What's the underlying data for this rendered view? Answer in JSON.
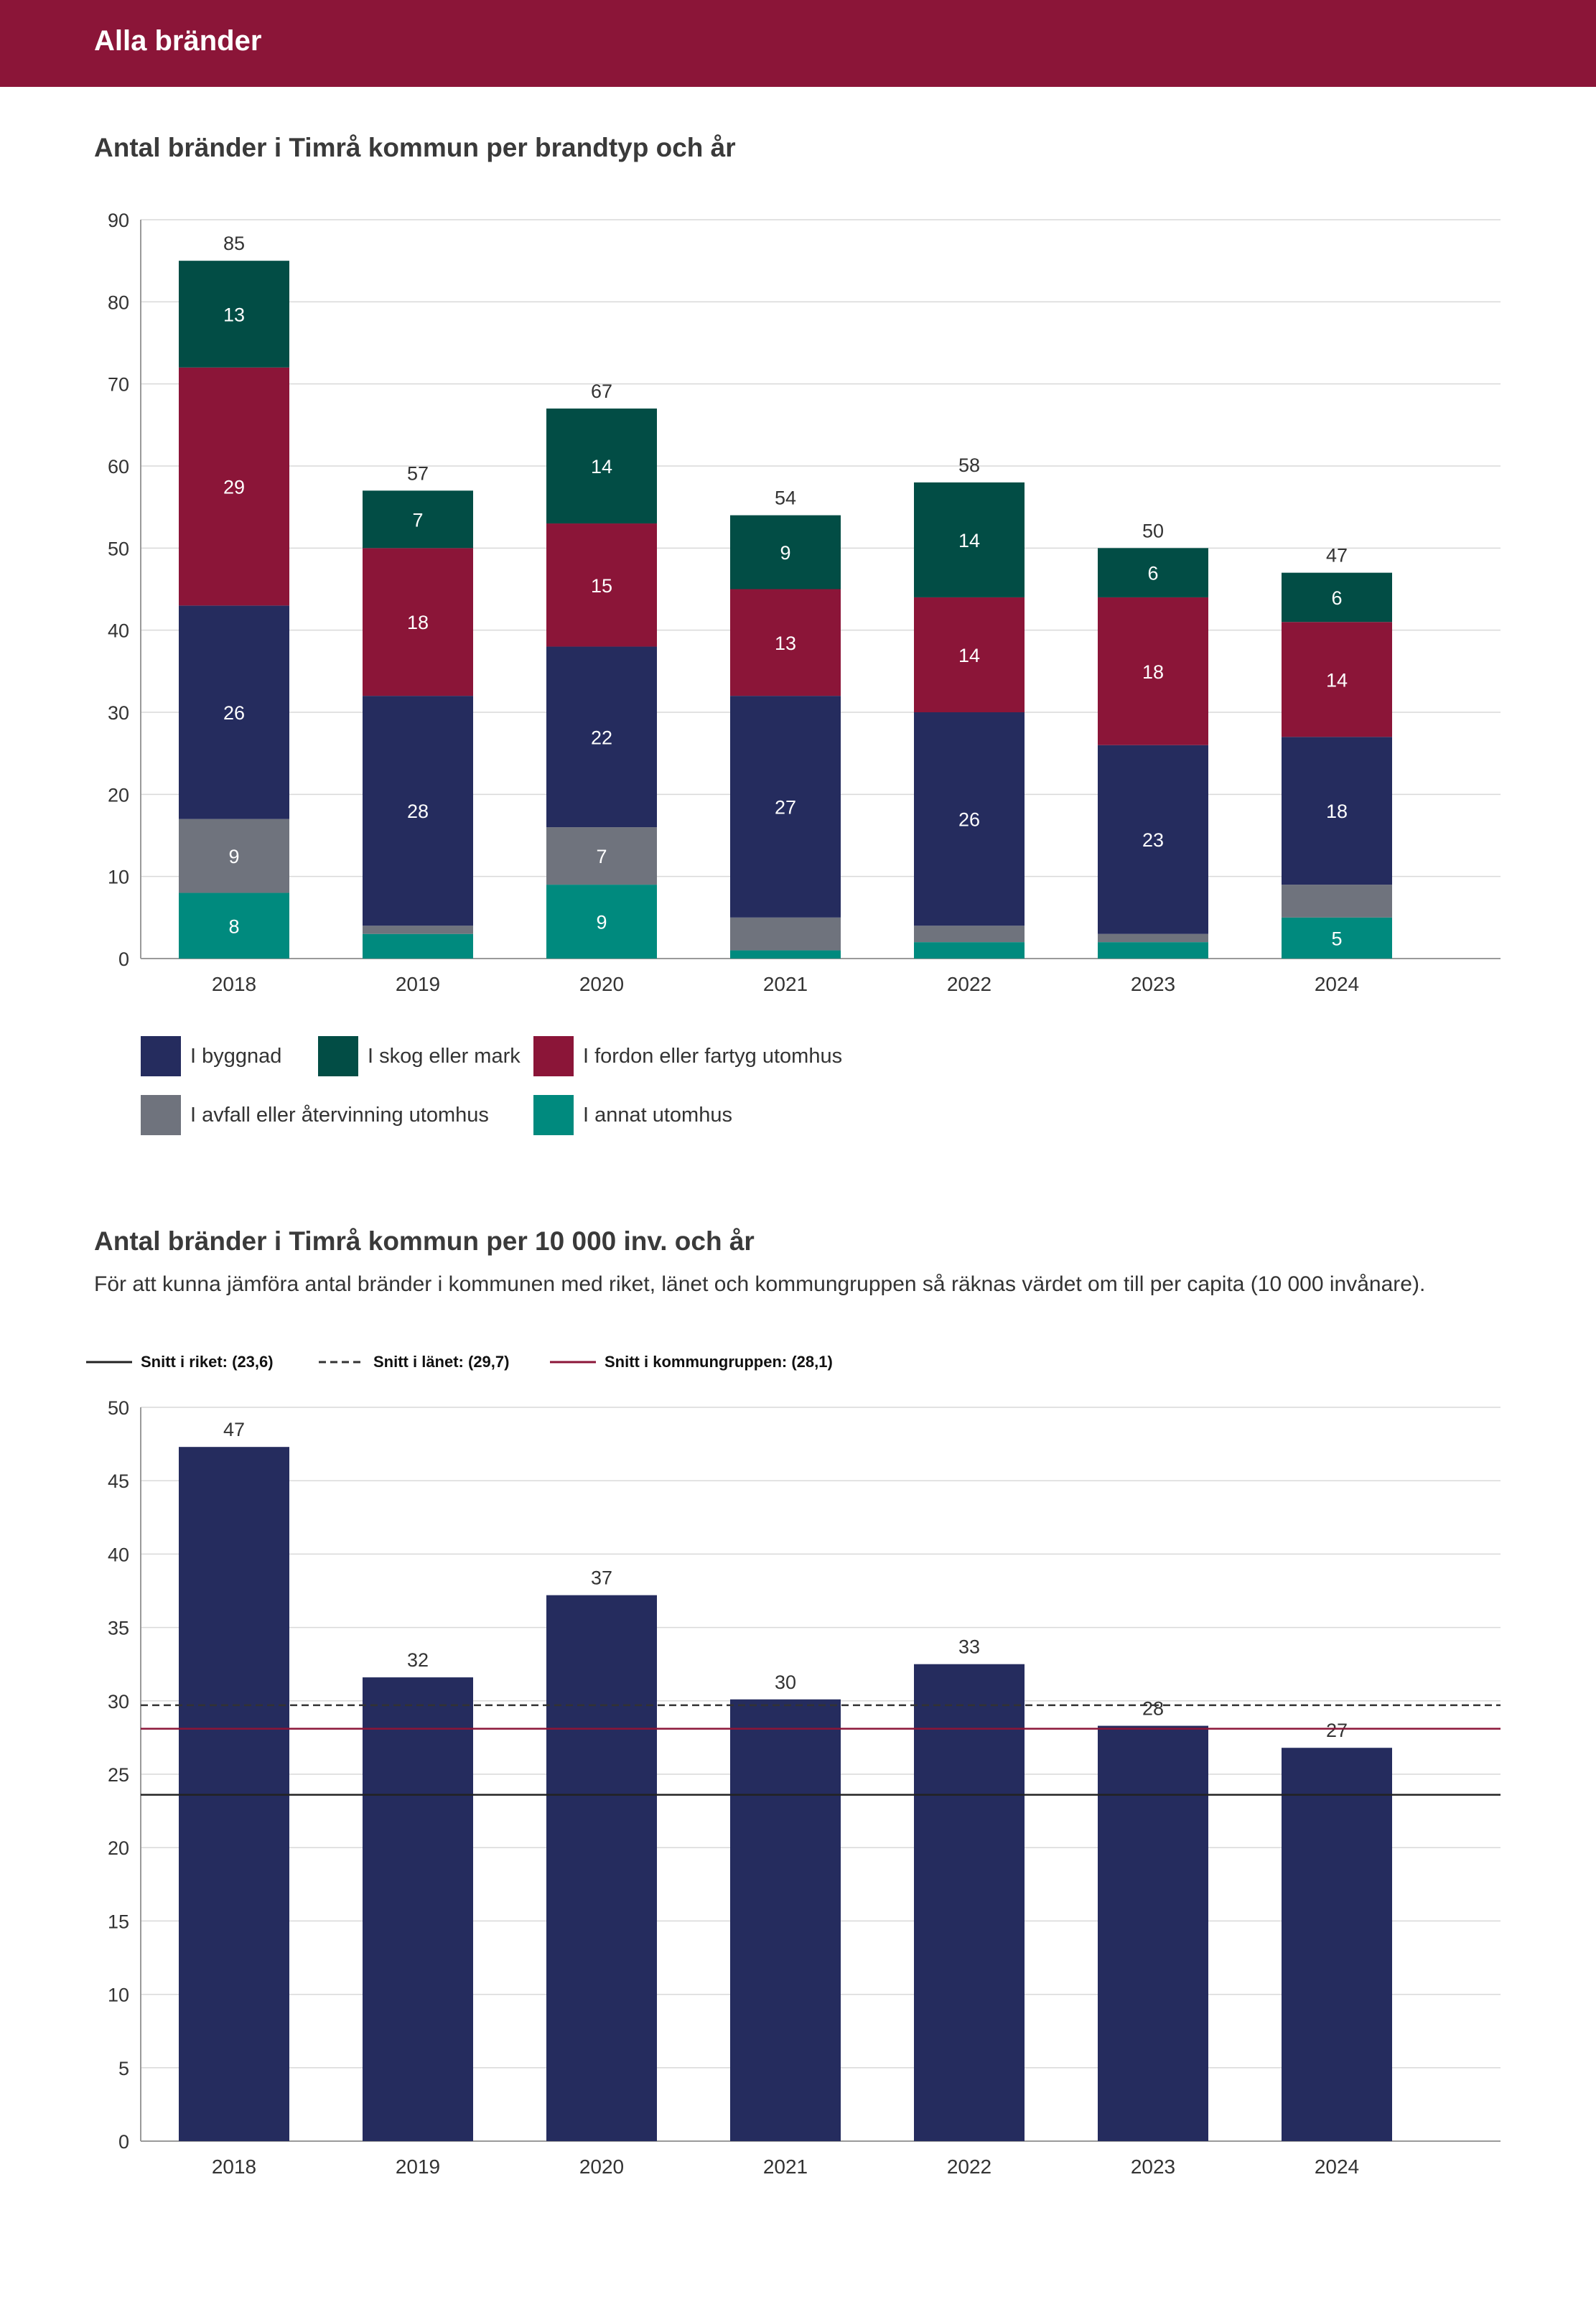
{
  "header": {
    "title": "Alla bränder"
  },
  "colors": {
    "header": "#8b1538",
    "byggnad": "#252c5e",
    "skog": "#024d45",
    "fordon": "#8b1538",
    "avfall": "#6f737d",
    "annat": "#008a7e",
    "bar": "#252c5e",
    "ref_riket": "#222222",
    "ref_lanet": "#333333",
    "ref_grupp": "#8b1538"
  },
  "chart_data": [
    {
      "type": "bar",
      "stacked": true,
      "title": "Antal bränder i Timrå kommun per brandtyp och år",
      "categories": [
        "2018",
        "2019",
        "2020",
        "2021",
        "2022",
        "2023",
        "2024"
      ],
      "series": [
        {
          "key": "annat",
          "name": "I annat utomhus",
          "values": [
            8,
            3,
            9,
            1,
            2,
            2,
            5
          ]
        },
        {
          "key": "avfall",
          "name": "I avfall eller återvinning utomhus",
          "values": [
            9,
            1,
            7,
            4,
            2,
            1,
            4
          ]
        },
        {
          "key": "byggnad",
          "name": "I byggnad",
          "values": [
            26,
            28,
            22,
            27,
            26,
            23,
            18
          ]
        },
        {
          "key": "fordon",
          "name": "I fordon eller fartyg utomhus",
          "values": [
            29,
            18,
            15,
            13,
            14,
            18,
            14
          ]
        },
        {
          "key": "skog",
          "name": "I skog eller mark",
          "values": [
            13,
            7,
            14,
            9,
            14,
            6,
            6
          ]
        }
      ],
      "totals": [
        85,
        57,
        67,
        54,
        58,
        50,
        47
      ],
      "ylim": [
        0,
        90
      ],
      "yticks": [
        0,
        10,
        20,
        30,
        40,
        50,
        60,
        70,
        80,
        90
      ],
      "grid": true,
      "legend_position": "bottom"
    },
    {
      "type": "bar",
      "title": "Antal bränder i Timrå kommun per 10 000 inv. och år",
      "subtitle": "För att kunna jämföra antal bränder i kommunen med riket, länet och kommungruppen så räknas värdet om till per capita (10 000 invånare).",
      "categories": [
        "2018",
        "2019",
        "2020",
        "2021",
        "2022",
        "2023",
        "2024"
      ],
      "values": [
        47.3,
        31.6,
        37.2,
        30.1,
        32.5,
        28.3,
        26.8
      ],
      "value_labels": [
        "47",
        "32",
        "37",
        "30",
        "33",
        "28",
        "27"
      ],
      "ylim": [
        0,
        50
      ],
      "yticks": [
        0,
        5,
        10,
        15,
        20,
        25,
        30,
        35,
        40,
        45,
        50
      ],
      "grid": true,
      "reference_lines": [
        {
          "key": "riket",
          "label": "Snitt i riket: (23,6)",
          "value": 23.6,
          "style": "solid"
        },
        {
          "key": "lanet",
          "label": "Snitt i länet: (29,7)",
          "value": 29.7,
          "style": "dashed"
        },
        {
          "key": "grupp",
          "label": "Snitt i kommungruppen: (28,1)",
          "value": 28.1,
          "style": "solid"
        }
      ],
      "legend_position": "top-left"
    }
  ]
}
